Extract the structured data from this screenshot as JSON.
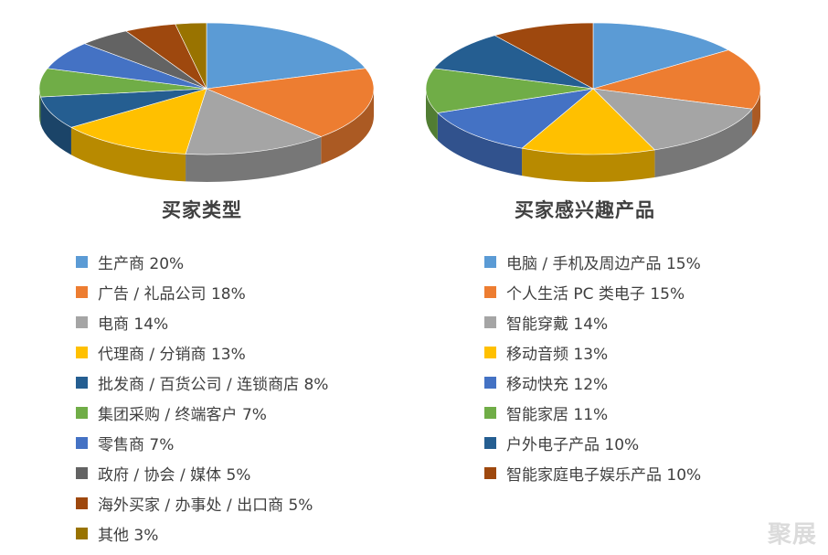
{
  "chart_data": [
    {
      "type": "pie",
      "title": "买家类型",
      "legend_position": "bottom",
      "slices": [
        {
          "label": "生产商",
          "legend": "生产商 20%",
          "value": 20,
          "color": "#5B9BD5"
        },
        {
          "label": "广告 / 礼品公司",
          "legend": "广告 / 礼品公司 18%",
          "value": 18,
          "color": "#ED7D31"
        },
        {
          "label": "电商",
          "legend": "电商 14%",
          "value": 14,
          "color": "#A5A5A5"
        },
        {
          "label": "代理商 / 分销商",
          "legend": "代理商 / 分销商 13%",
          "value": 13,
          "color": "#FFC000"
        },
        {
          "label": "批发商 / 百货公司 / 连锁商店",
          "legend": "批发商 / 百货公司 / 连锁商店 8%",
          "value": 8,
          "color": "#255E91"
        },
        {
          "label": "集团采购 / 终端客户",
          "legend": "集团采购 / 终端客户 7%",
          "value": 7,
          "color": "#70AD47"
        },
        {
          "label": "零售商",
          "legend": "零售商 7%",
          "value": 7,
          "color": "#4472C4"
        },
        {
          "label": "政府 / 协会 / 媒体",
          "legend": "政府 / 协会 / 媒体 5%",
          "value": 5,
          "color": "#636363"
        },
        {
          "label": "海外买家 / 办事处 / 出口商",
          "legend": "海外买家 / 办事处 / 出口商 5%",
          "value": 5,
          "color": "#9E480E"
        },
        {
          "label": "其他",
          "legend": "其他 3%",
          "value": 3,
          "color": "#997300"
        }
      ]
    },
    {
      "type": "pie",
      "title": "买家感兴趣产品",
      "legend_position": "bottom",
      "slices": [
        {
          "label": "电脑 / 手机及周边产品",
          "legend": "电脑 / 手机及周边产品 15%",
          "value": 15,
          "color": "#5B9BD5"
        },
        {
          "label": "个人生活 PC 类电子",
          "legend": "个人生活 PC 类电子 15%",
          "value": 15,
          "color": "#ED7D31"
        },
        {
          "label": "智能穿戴",
          "legend": "智能穿戴 14%",
          "value": 14,
          "color": "#A5A5A5"
        },
        {
          "label": "移动音频",
          "legend": "移动音频 13%",
          "value": 13,
          "color": "#FFC000"
        },
        {
          "label": "移动快充",
          "legend": "移动快充 12%",
          "value": 12,
          "color": "#4472C4"
        },
        {
          "label": "智能家居",
          "legend": "智能家居 11%",
          "value": 11,
          "color": "#70AD47"
        },
        {
          "label": "户外电子产品",
          "legend": "户外电子产品 10%",
          "value": 10,
          "color": "#255E91"
        },
        {
          "label": "智能家庭电子娱乐产品",
          "legend": "智能家庭电子娱乐产品 10%",
          "value": 10,
          "color": "#9E480E"
        }
      ]
    }
  ],
  "watermark": "聚展"
}
